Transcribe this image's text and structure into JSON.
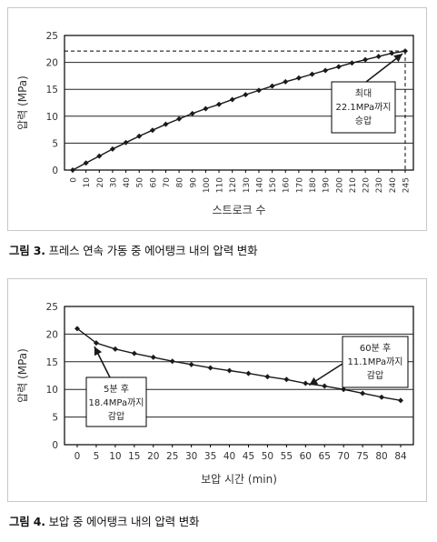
{
  "chart_data": [
    {
      "type": "line",
      "xlabel": "스트로크 수",
      "ylabel": "압력 (MPa)",
      "ylim": [
        0,
        25
      ],
      "yticks": [
        0,
        5,
        10,
        15,
        20,
        25
      ],
      "grid": "horizontal",
      "categories": [
        "0",
        "10",
        "20",
        "30",
        "40",
        "50",
        "60",
        "70",
        "80",
        "90",
        "100",
        "110",
        "120",
        "130",
        "140",
        "150",
        "160",
        "170",
        "180",
        "190",
        "200",
        "210",
        "220",
        "230",
        "240",
        "245"
      ],
      "values": [
        0,
        1.3,
        2.6,
        3.9,
        5.1,
        6.3,
        7.4,
        8.5,
        9.5,
        10.5,
        11.4,
        12.2,
        13.1,
        14.0,
        14.8,
        15.6,
        16.4,
        17.1,
        17.8,
        18.5,
        19.2,
        19.9,
        20.5,
        21.1,
        21.7,
        22.1
      ],
      "reference": {
        "y": 22.1,
        "x_category": "245"
      },
      "annotation": {
        "lines": [
          "최대",
          "22.1MPa까지",
          "승압"
        ],
        "target_category": "245",
        "target_value": 22.1
      },
      "caption": {
        "label": "그림 3.",
        "text": " 프레스 연속 가동 중 에어탱크 내의 압력 변화"
      }
    },
    {
      "type": "line",
      "xlabel": "보압 시간 (min)",
      "ylabel": "압력 (MPa)",
      "ylim": [
        0,
        25
      ],
      "yticks": [
        0,
        5,
        10,
        15,
        20,
        25
      ],
      "grid": "horizontal",
      "categories": [
        "0",
        "5",
        "10",
        "15",
        "20",
        "25",
        "30",
        "35",
        "40",
        "45",
        "50",
        "55",
        "60",
        "65",
        "70",
        "75",
        "80",
        "84"
      ],
      "values": [
        21.0,
        18.4,
        17.3,
        16.5,
        15.8,
        15.1,
        14.5,
        13.9,
        13.4,
        12.9,
        12.3,
        11.8,
        11.1,
        10.6,
        10.0,
        9.3,
        8.6,
        8.0
      ],
      "annotations": [
        {
          "lines": [
            "5분 후",
            "18.4MPa까지",
            "감압"
          ],
          "target_category": "5",
          "target_value": 18.4
        },
        {
          "lines": [
            "60분 후",
            "11.1MPa까지",
            "감압"
          ],
          "target_category": "60",
          "target_value": 11.1
        }
      ],
      "caption": {
        "label": "그림 4.",
        "text": " 보압 중 에어탱크 내의 압력 변화"
      }
    }
  ]
}
